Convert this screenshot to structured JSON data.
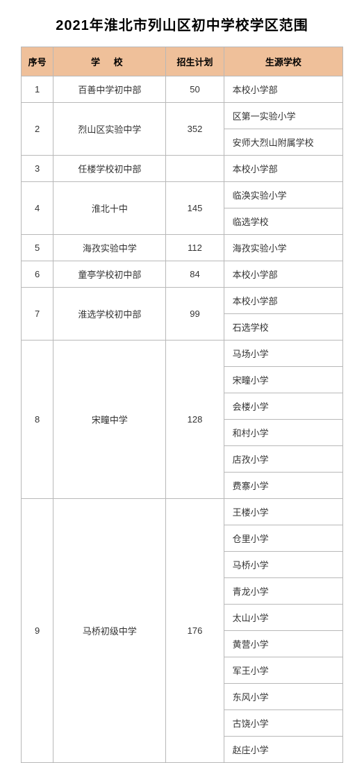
{
  "title": "2021年淮北市列山区初中学校学区范围",
  "columns": {
    "idx": "序号",
    "school": "学   校",
    "plan": "招生计划",
    "source": "生源学校"
  },
  "rows": [
    {
      "idx": "1",
      "school": "百善中学初中部",
      "plan": "50",
      "sources": [
        "本校小学部"
      ]
    },
    {
      "idx": "2",
      "school": "烈山区实验中学",
      "plan": "352",
      "sources": [
        "区第一实验小学",
        "安师大烈山附属学校"
      ]
    },
    {
      "idx": "3",
      "school": "任楼学校初中部",
      "plan": "",
      "sources": [
        "本校小学部"
      ]
    },
    {
      "idx": "4",
      "school": "淮北十中",
      "plan": "145",
      "sources": [
        "临涣实验小学",
        "临选学校"
      ]
    },
    {
      "idx": "5",
      "school": "海孜实验中学",
      "plan": "112",
      "sources": [
        "海孜实验小学"
      ]
    },
    {
      "idx": "6",
      "school": "童亭学校初中部",
      "plan": "84",
      "sources": [
        "本校小学部"
      ]
    },
    {
      "idx": "7",
      "school": "淮选学校初中部",
      "plan": "99",
      "sources": [
        "本校小学部",
        "石选学校"
      ]
    },
    {
      "idx": "8",
      "school": "宋疃中学",
      "plan": "128",
      "sources": [
        "马场小学",
        "宋疃小学",
        "会楼小学",
        "和村小学",
        "店孜小学",
        "费寨小学"
      ]
    },
    {
      "idx": "9",
      "school": "马桥初级中学",
      "plan": "176",
      "sources": [
        "王楼小学",
        "仓里小学",
        "马桥小学",
        "青龙小学",
        "太山小学",
        "黄营小学",
        "军王小学",
        "东风小学",
        "古饶小学",
        "赵庄小学"
      ]
    }
  ],
  "header_bg": "#efc09a",
  "border_color": "#b8b8b8"
}
